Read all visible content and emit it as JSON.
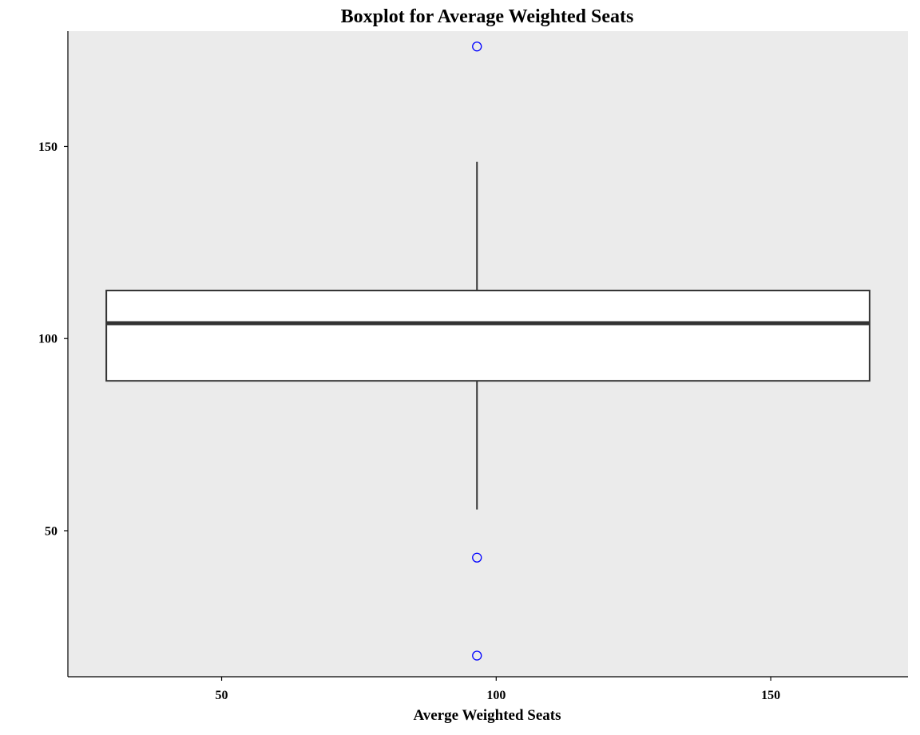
{
  "chart_data": {
    "type": "boxplot",
    "title": "Boxplot for Average Weighted Seats",
    "xlabel": "Averge Weighted Seats",
    "ylabel": "",
    "xlim": [
      22,
      175
    ],
    "ylim": [
      12,
      180
    ],
    "x_ticks": [
      50,
      100,
      150
    ],
    "y_ticks": [
      50,
      100,
      150
    ],
    "grid": false,
    "box": {
      "x_center": 96.5,
      "x_range": [
        29,
        168
      ],
      "whisker_low": 55.5,
      "q1": 89,
      "median": 104,
      "q3": 112.5,
      "whisker_high": 146
    },
    "outliers": [
      {
        "x": 96.5,
        "y": 176
      },
      {
        "x": 96.5,
        "y": 43
      },
      {
        "x": 96.5,
        "y": 17.5
      }
    ],
    "colors": {
      "panel_background": "#ebebeb",
      "box_fill": "#ffffff",
      "box_line": "#333333",
      "outlier": "#0000ff",
      "axis_line": "#000000"
    }
  }
}
